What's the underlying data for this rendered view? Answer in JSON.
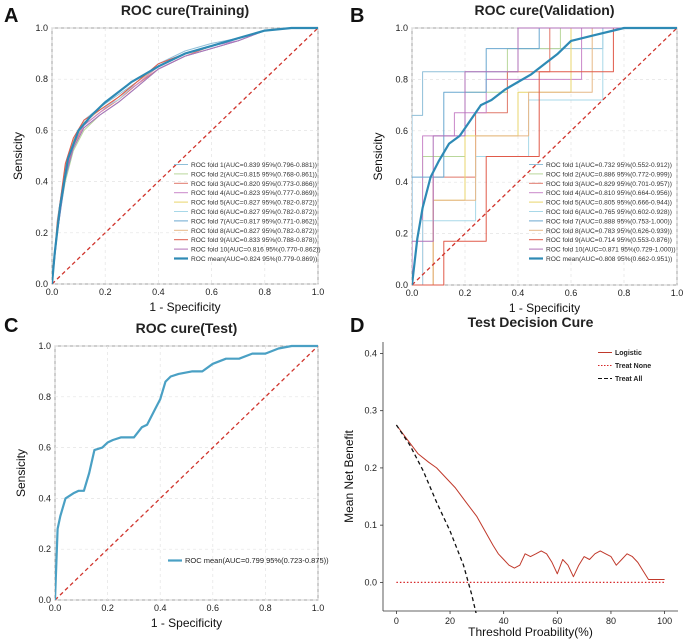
{
  "chart_data": [
    {
      "panel": "A",
      "type": "line",
      "title": "ROC cure(Training)",
      "xlabel": "1 - Specificity",
      "ylabel": "Sensicity",
      "xlim": [
        0,
        1.0
      ],
      "ylim": [
        0,
        1.0
      ],
      "ticks": [
        "0.0",
        "0.2",
        "0.4",
        "0.6",
        "0.8",
        "1.0"
      ],
      "grid": true,
      "legend_position": "bottom-right",
      "series": [
        {
          "name": "ROC fold  1(AUC=0.839 95%(0.796-0.881))",
          "color": "#8fbfd8",
          "x": [
            0,
            0.02,
            0.05,
            0.08,
            0.12,
            0.18,
            0.25,
            0.32,
            0.4,
            0.5,
            0.6,
            0.7,
            0.8,
            0.9,
            1.0
          ],
          "y": [
            0,
            0.25,
            0.45,
            0.56,
            0.64,
            0.69,
            0.74,
            0.79,
            0.86,
            0.91,
            0.94,
            0.96,
            0.99,
            1.0,
            1.0
          ]
        },
        {
          "name": "ROC fold  2(AUC=0.815 95%(0.768-0.861))",
          "color": "#b9d79b",
          "x": [
            0,
            0.02,
            0.05,
            0.08,
            0.12,
            0.18,
            0.25,
            0.32,
            0.4,
            0.5,
            0.6,
            0.7,
            0.8,
            0.9,
            1.0
          ],
          "y": [
            0,
            0.22,
            0.4,
            0.52,
            0.6,
            0.66,
            0.71,
            0.77,
            0.84,
            0.89,
            0.92,
            0.95,
            0.99,
            1.0,
            1.0
          ]
        },
        {
          "name": "ROC fold  3(AUC=0.820 95%(0.773-0.866))",
          "color": "#e0786a",
          "x": [
            0,
            0.02,
            0.05,
            0.08,
            0.12,
            0.18,
            0.25,
            0.32,
            0.4,
            0.5,
            0.6,
            0.7,
            0.8,
            0.9,
            1.0
          ],
          "y": [
            0,
            0.2,
            0.43,
            0.54,
            0.62,
            0.67,
            0.72,
            0.78,
            0.84,
            0.89,
            0.93,
            0.96,
            0.99,
            1.0,
            1.0
          ]
        },
        {
          "name": "ROC fold  4(AUC=0.823 95%(0.777-0.869))",
          "color": "#c987c9",
          "x": [
            0,
            0.02,
            0.05,
            0.08,
            0.12,
            0.18,
            0.25,
            0.32,
            0.4,
            0.5,
            0.6,
            0.7,
            0.8,
            0.9,
            1.0
          ],
          "y": [
            0,
            0.23,
            0.44,
            0.55,
            0.62,
            0.67,
            0.73,
            0.78,
            0.85,
            0.9,
            0.93,
            0.95,
            0.99,
            1.0,
            1.0
          ]
        },
        {
          "name": "ROC fold  5(AUC=0.827 95%(0.782-0.872))",
          "color": "#e8d66c",
          "x": [
            0,
            0.02,
            0.05,
            0.08,
            0.12,
            0.18,
            0.25,
            0.32,
            0.4,
            0.5,
            0.6,
            0.7,
            0.8,
            0.9,
            1.0
          ],
          "y": [
            0,
            0.24,
            0.46,
            0.55,
            0.63,
            0.68,
            0.73,
            0.79,
            0.85,
            0.9,
            0.93,
            0.96,
            0.99,
            1.0,
            1.0
          ]
        },
        {
          "name": "ROC fold  6(AUC=0.827 95%(0.782-0.872))",
          "color": "#a8d8e8",
          "x": [
            0,
            0.02,
            0.05,
            0.08,
            0.12,
            0.18,
            0.25,
            0.32,
            0.4,
            0.5,
            0.6,
            0.7,
            0.8,
            0.9,
            1.0
          ],
          "y": [
            0,
            0.21,
            0.45,
            0.56,
            0.63,
            0.68,
            0.72,
            0.79,
            0.85,
            0.9,
            0.93,
            0.96,
            0.99,
            1.0,
            1.0
          ]
        },
        {
          "name": "ROC fold  7(AUC=0.817 95%(0.771-0.862))",
          "color": "#6aa8d0",
          "x": [
            0,
            0.02,
            0.05,
            0.08,
            0.12,
            0.18,
            0.25,
            0.32,
            0.4,
            0.5,
            0.6,
            0.7,
            0.8,
            0.9,
            1.0
          ],
          "y": [
            0,
            0.2,
            0.41,
            0.53,
            0.61,
            0.66,
            0.71,
            0.77,
            0.84,
            0.89,
            0.92,
            0.95,
            0.99,
            1.0,
            1.0
          ]
        },
        {
          "name": "ROC fold  8(AUC=0.827 95%(0.782-0.872))",
          "color": "#e6b887",
          "x": [
            0,
            0.02,
            0.05,
            0.08,
            0.12,
            0.18,
            0.25,
            0.32,
            0.4,
            0.5,
            0.6,
            0.7,
            0.8,
            0.9,
            1.0
          ],
          "y": [
            0,
            0.22,
            0.46,
            0.56,
            0.63,
            0.68,
            0.73,
            0.79,
            0.85,
            0.9,
            0.93,
            0.96,
            0.99,
            1.0,
            1.0
          ]
        },
        {
          "name": "ROC fold  9(AUC=0.833 95%(0.788-0.878))",
          "color": "#e05a4a",
          "x": [
            0,
            0.02,
            0.05,
            0.08,
            0.12,
            0.18,
            0.25,
            0.32,
            0.4,
            0.5,
            0.6,
            0.7,
            0.8,
            0.9,
            1.0
          ],
          "y": [
            0,
            0.24,
            0.47,
            0.57,
            0.64,
            0.68,
            0.73,
            0.79,
            0.86,
            0.9,
            0.93,
            0.96,
            0.99,
            1.0,
            1.0
          ]
        },
        {
          "name": "ROC fold 10(AUC=0.816 95%(0.770-0.862))",
          "color": "#b070b8",
          "x": [
            0,
            0.02,
            0.05,
            0.08,
            0.12,
            0.18,
            0.25,
            0.32,
            0.4,
            0.5,
            0.6,
            0.7,
            0.8,
            0.9,
            1.0
          ],
          "y": [
            0,
            0.2,
            0.42,
            0.53,
            0.61,
            0.66,
            0.71,
            0.77,
            0.84,
            0.89,
            0.92,
            0.95,
            0.99,
            1.0,
            1.0
          ]
        },
        {
          "name": "ROC  mean(AUC=0.824 95%(0.779-0.869))",
          "color": "#2e8ab5",
          "bold": true,
          "x": [
            0,
            0.01,
            0.03,
            0.06,
            0.1,
            0.15,
            0.2,
            0.3,
            0.4,
            0.5,
            0.6,
            0.7,
            0.8,
            0.9,
            1.0
          ],
          "y": [
            0,
            0.12,
            0.3,
            0.49,
            0.6,
            0.66,
            0.71,
            0.79,
            0.85,
            0.9,
            0.93,
            0.96,
            0.99,
            1.0,
            1.0
          ]
        },
        {
          "name": "chance",
          "color": "#d0342c",
          "dashed": true,
          "x": [
            0,
            1
          ],
          "y": [
            0,
            1
          ]
        }
      ]
    },
    {
      "panel": "B",
      "type": "line",
      "title": "ROC cure(Validation)",
      "xlabel": "1 - Specificity",
      "ylabel": "Sensicity",
      "xlim": [
        0,
        1.0
      ],
      "ylim": [
        0,
        1.0
      ],
      "ticks": [
        "0.0",
        "0.2",
        "0.4",
        "0.6",
        "0.8",
        "1.0"
      ],
      "grid": true,
      "legend_position": "bottom-right",
      "series": [
        {
          "name": "ROC fold  1(AUC=0.732 95%(0.552-0.912))",
          "color": "#8fbfd8",
          "x": [
            0,
            0,
            0.04,
            0.04,
            0.4,
            0.4,
            0.72,
            0.72,
            1.0
          ],
          "y": [
            0,
            0.66,
            0.66,
            0.83,
            0.83,
            0.92,
            0.92,
            1.0,
            1.0
          ]
        },
        {
          "name": "ROC fold  2(AUC=0.886 95%(0.772-0.999))",
          "color": "#b9d79b",
          "x": [
            0,
            0.04,
            0.04,
            0.2,
            0.2,
            0.36,
            0.36,
            0.56,
            0.56,
            1.0
          ],
          "y": [
            0,
            0,
            0.5,
            0.5,
            0.75,
            0.75,
            0.92,
            0.92,
            1.0,
            1.0
          ]
        },
        {
          "name": "ROC fold  3(AUC=0.829 95%(0.701-0.957))",
          "color": "#e0786a",
          "x": [
            0,
            0.08,
            0.08,
            0.24,
            0.24,
            0.36,
            0.36,
            0.52,
            0.52,
            1.0
          ],
          "y": [
            0,
            0,
            0.42,
            0.42,
            0.67,
            0.67,
            0.83,
            0.83,
            1.0,
            1.0
          ]
        },
        {
          "name": "ROC fold  4(AUC=0.810 95%(0.664-0.956))",
          "color": "#c987c9",
          "x": [
            0,
            0.04,
            0.04,
            0.16,
            0.16,
            0.28,
            0.28,
            0.64,
            0.64,
            1.0
          ],
          "y": [
            0,
            0,
            0.58,
            0.58,
            0.67,
            0.67,
            0.8,
            0.8,
            1.0,
            1.0
          ]
        },
        {
          "name": "ROC fold  5(AUC=0.805 95%(0.666-0.944))",
          "color": "#e8d66c",
          "x": [
            0,
            0.08,
            0.08,
            0.2,
            0.2,
            0.4,
            0.4,
            0.6,
            0.6,
            1.0
          ],
          "y": [
            0,
            0,
            0.33,
            0.33,
            0.58,
            0.58,
            0.75,
            0.75,
            1.0,
            1.0
          ]
        },
        {
          "name": "ROC fold  6(AUC=0.765 95%(0.602-0.928))",
          "color": "#a8d8e8",
          "x": [
            0,
            0.04,
            0.04,
            0.24,
            0.24,
            0.44,
            0.44,
            0.72,
            0.72,
            1.0
          ],
          "y": [
            0,
            0,
            0.25,
            0.25,
            0.5,
            0.5,
            0.72,
            0.72,
            1.0,
            1.0
          ]
        },
        {
          "name": "ROC fold  7(AUC=0.888 95%(0.753-1.000))",
          "color": "#6aa8d0",
          "x": [
            0,
            0,
            0.12,
            0.12,
            0.28,
            0.28,
            0.48,
            0.48,
            1.0
          ],
          "y": [
            0,
            0.42,
            0.42,
            0.75,
            0.75,
            0.92,
            0.92,
            1.0,
            1.0
          ]
        },
        {
          "name": "ROC fold  8(AUC=0.783 95%(0.626-0.939))",
          "color": "#e6b887",
          "x": [
            0,
            0.08,
            0.08,
            0.24,
            0.24,
            0.44,
            0.44,
            0.68,
            0.68,
            1.0
          ],
          "y": [
            0,
            0,
            0.33,
            0.33,
            0.58,
            0.58,
            0.75,
            0.75,
            1.0,
            1.0
          ]
        },
        {
          "name": "ROC fold  9(AUC=0.714 95%(0.553-0.876))",
          "color": "#e05a4a",
          "x": [
            0,
            0.12,
            0.12,
            0.28,
            0.28,
            0.48,
            0.48,
            0.76,
            0.76,
            1.0
          ],
          "y": [
            0,
            0,
            0.17,
            0.17,
            0.5,
            0.5,
            0.83,
            0.83,
            1.0,
            1.0
          ]
        },
        {
          "name": "ROC fold 10(AUC=0.871 95%(0.729-1.000))",
          "color": "#b070b8",
          "x": [
            0,
            0,
            0.08,
            0.08,
            0.2,
            0.2,
            0.4,
            0.4,
            1.0
          ],
          "y": [
            0,
            0.17,
            0.17,
            0.58,
            0.58,
            0.83,
            0.83,
            1.0,
            1.0
          ]
        },
        {
          "name": "ROC  mean(AUC=0.808 95%(0.662-0.951))",
          "color": "#2e8ab5",
          "bold": true,
          "x": [
            0,
            0.02,
            0.04,
            0.07,
            0.1,
            0.14,
            0.18,
            0.22,
            0.26,
            0.3,
            0.35,
            0.4,
            0.45,
            0.5,
            0.55,
            0.6,
            0.68,
            0.8,
            1.0
          ],
          "y": [
            0,
            0.18,
            0.3,
            0.42,
            0.48,
            0.55,
            0.58,
            0.64,
            0.7,
            0.72,
            0.76,
            0.79,
            0.82,
            0.86,
            0.9,
            0.95,
            0.97,
            1.0,
            1.0
          ]
        },
        {
          "name": "chance",
          "color": "#d0342c",
          "dashed": true,
          "x": [
            0,
            1
          ],
          "y": [
            0,
            1
          ]
        }
      ]
    },
    {
      "panel": "C",
      "type": "line",
      "title": "ROC cure(Test)",
      "xlabel": "1 - Specificity",
      "ylabel": "Sensicity",
      "xlim": [
        0,
        1.0
      ],
      "ylim": [
        0,
        1.0
      ],
      "ticks": [
        "0.0",
        "0.2",
        "0.4",
        "0.6",
        "0.8",
        "1.0"
      ],
      "grid": true,
      "legend_position": "bottom-right",
      "series": [
        {
          "name": "ROC  mean(AUC=0.799 95%(0.723-0.875))",
          "color": "#4aa0c4",
          "bold": true,
          "x": [
            0,
            0.01,
            0.02,
            0.04,
            0.07,
            0.09,
            0.11,
            0.13,
            0.15,
            0.18,
            0.2,
            0.22,
            0.25,
            0.3,
            0.33,
            0.35,
            0.38,
            0.4,
            0.42,
            0.44,
            0.47,
            0.52,
            0.56,
            0.6,
            0.65,
            0.7,
            0.75,
            0.8,
            0.85,
            0.9,
            1.0
          ],
          "y": [
            0,
            0.28,
            0.33,
            0.4,
            0.42,
            0.43,
            0.43,
            0.5,
            0.59,
            0.6,
            0.62,
            0.63,
            0.64,
            0.64,
            0.68,
            0.69,
            0.75,
            0.79,
            0.86,
            0.88,
            0.89,
            0.9,
            0.9,
            0.93,
            0.95,
            0.95,
            0.97,
            0.97,
            0.99,
            1.0,
            1.0
          ]
        },
        {
          "name": "chance",
          "color": "#d0342c",
          "dashed": true,
          "x": [
            0,
            1
          ],
          "y": [
            0,
            1
          ]
        }
      ]
    },
    {
      "panel": "D",
      "type": "line",
      "title": "Test Decision Cure",
      "xlabel": "Threshold Proability(%)",
      "ylabel": "Mean Net Benefit",
      "xlim": [
        -5,
        105
      ],
      "ylim": [
        -0.05,
        0.42
      ],
      "xticks": [
        "0",
        "20",
        "40",
        "60",
        "80",
        "100"
      ],
      "yticks": [
        "0.0",
        "0.1",
        "0.2",
        "0.3",
        "0.4"
      ],
      "grid": false,
      "legend_position": "top-right",
      "series": [
        {
          "name": "Logistic",
          "color": "#c0392b",
          "x": [
            0,
            4,
            8,
            12,
            15,
            18,
            22,
            26,
            30,
            33,
            36,
            38,
            40,
            42,
            44,
            46,
            48,
            50,
            52,
            54,
            56,
            58,
            60,
            62,
            64,
            66,
            68,
            70,
            72,
            74,
            76,
            78,
            80,
            82,
            84,
            86,
            88,
            90,
            92,
            94,
            96,
            98,
            100
          ],
          "y": [
            0.275,
            0.25,
            0.225,
            0.21,
            0.2,
            0.185,
            0.165,
            0.14,
            0.115,
            0.09,
            0.065,
            0.05,
            0.04,
            0.03,
            0.025,
            0.03,
            0.05,
            0.045,
            0.05,
            0.055,
            0.05,
            0.035,
            0.015,
            0.04,
            0.03,
            0.01,
            0.03,
            0.045,
            0.04,
            0.05,
            0.055,
            0.05,
            0.045,
            0.03,
            0.04,
            0.05,
            0.045,
            0.035,
            0.02,
            0.005,
            0.005,
            0.005,
            0.005
          ]
        },
        {
          "name": "Treat None",
          "color": "#d62728",
          "dotted": true,
          "x": [
            0,
            100
          ],
          "y": [
            0,
            0
          ]
        },
        {
          "name": "Treat All",
          "color": "#111111",
          "dashed": true,
          "x": [
            0,
            5,
            10,
            15,
            20,
            25,
            28,
            30
          ],
          "y": [
            0.275,
            0.24,
            0.195,
            0.14,
            0.09,
            0.03,
            -0.02,
            -0.06
          ]
        }
      ]
    }
  ]
}
